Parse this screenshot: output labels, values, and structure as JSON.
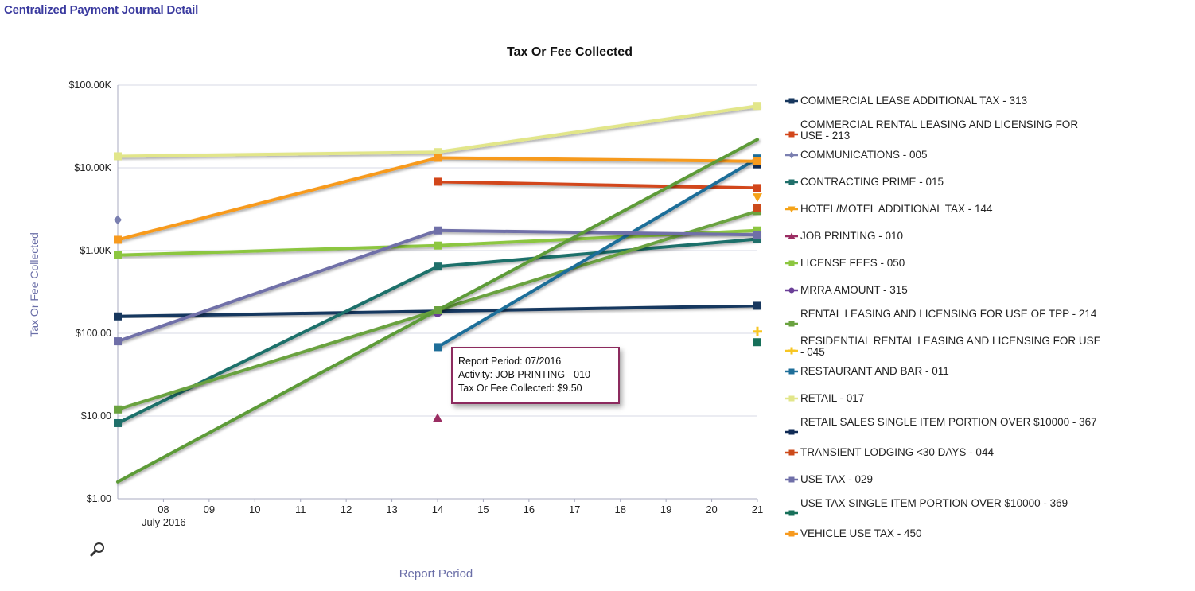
{
  "page": {
    "title": "Centralized Payment Journal Detail"
  },
  "tooltip": {
    "line1": "Report Period: 07/2016",
    "line2": "Activity: JOB PRINTING - 010",
    "line3": "Tax Or Fee Collected: $9.50"
  },
  "chart_data": {
    "type": "line",
    "title": "Tax Or Fee Collected",
    "xlabel": "Report Period",
    "ylabel": "Tax Or Fee Collected",
    "y_scale": "log",
    "ylim": [
      1,
      100000
    ],
    "y_ticks": [
      {
        "value": 1,
        "label": "$1.00"
      },
      {
        "value": 10,
        "label": "$10.00"
      },
      {
        "value": 100,
        "label": "$100.00"
      },
      {
        "value": 1000,
        "label": "$1.00K"
      },
      {
        "value": 10000,
        "label": "$10.00K"
      },
      {
        "value": 100000,
        "label": "$100.00K"
      }
    ],
    "x_range": [
      7,
      21
    ],
    "x_ticks": [
      {
        "value": 8,
        "label": "08"
      },
      {
        "value": 9,
        "label": "09"
      },
      {
        "value": 10,
        "label": "10"
      },
      {
        "value": 11,
        "label": "11"
      },
      {
        "value": 12,
        "label": "12"
      },
      {
        "value": 13,
        "label": "13"
      },
      {
        "value": 14,
        "label": "14"
      },
      {
        "value": 15,
        "label": "15"
      },
      {
        "value": 16,
        "label": "16"
      },
      {
        "value": 17,
        "label": "17"
      },
      {
        "value": 18,
        "label": "18"
      },
      {
        "value": 19,
        "label": "19"
      },
      {
        "value": 20,
        "label": "20"
      },
      {
        "value": 21,
        "label": "21"
      }
    ],
    "month_label": "July 2016",
    "grid": true,
    "legend_position": "right",
    "series": [
      {
        "name": "COMMERCIAL LEASE ADDITIONAL TAX - 313",
        "color": "#17375e",
        "marker": "square",
        "points": [
          [
            7,
            160
          ],
          [
            14,
            185
          ],
          [
            21,
            215
          ]
        ]
      },
      {
        "name": "COMMERCIAL RENTAL LEASING AND LICENSING FOR USE - 213",
        "color": "#d2461a",
        "marker": "square",
        "points": [
          [
            14,
            6800
          ],
          [
            21,
            5700
          ]
        ]
      },
      {
        "name": "COMMUNICATIONS - 005",
        "color": "#7a7fb0",
        "marker": "diamond",
        "points": [
          [
            7,
            2350
          ]
        ]
      },
      {
        "name": "CONTRACTING PRIME - 015",
        "color": "#1f6f6a",
        "marker": "square",
        "points": [
          [
            7,
            8.2
          ],
          [
            14,
            640
          ],
          [
            21,
            1380
          ]
        ]
      },
      {
        "name": "HOTEL/MOTEL ADDITIONAL TAX - 144",
        "color": "#f5a318",
        "marker": "triangle-down",
        "points": [
          [
            21,
            4400
          ]
        ]
      },
      {
        "name": "JOB PRINTING - 010",
        "color": "#9a2d62",
        "marker": "triangle",
        "points": [
          [
            14,
            9.5
          ]
        ]
      },
      {
        "name": "LICENSE FEES - 050",
        "color": "#8cc63f",
        "marker": "square",
        "points": [
          [
            7,
            880
          ],
          [
            14,
            1150
          ],
          [
            21,
            1750
          ]
        ]
      },
      {
        "name": "MRRA AMOUNT - 315",
        "color": "#6b3f98",
        "marker": "circle",
        "points": [
          [
            14,
            175
          ]
        ]
      },
      {
        "name": "RENTAL LEASING AND LICENSING FOR USE OF TPP - 214",
        "color": "#6aa23f",
        "marker": "square",
        "points": [
          [
            7,
            12
          ],
          [
            14,
            190
          ],
          [
            21,
            3000
          ]
        ]
      },
      {
        "name": "RESIDENTIAL RENTAL LEASING AND LICENSING FOR USE - 045",
        "color": "#f7c623",
        "marker": "cross",
        "points": [
          [
            21,
            105
          ]
        ]
      },
      {
        "name": "RESTAURANT AND BAR - 011",
        "color": "#1e6e99",
        "marker": "square",
        "points": [
          [
            14,
            68
          ],
          [
            21,
            13000
          ]
        ]
      },
      {
        "name": "RETAIL - 017",
        "color": "#e2e68a",
        "marker": "square",
        "points": [
          [
            7,
            13800
          ],
          [
            14,
            15500
          ],
          [
            21,
            56000
          ]
        ]
      },
      {
        "name": "RETAIL SALES SINGLE ITEM PORTION OVER $10000 - 367",
        "color": "#0f2a55",
        "marker": "square",
        "points": [
          [
            21,
            11000
          ]
        ]
      },
      {
        "name": "TRANSIENT LODGING <30 DAYS - 044",
        "color": "#cc4a1a",
        "marker": "square",
        "points": [
          [
            21,
            3300
          ]
        ]
      },
      {
        "name": "USE TAX - 029",
        "color": "#6f6fa8",
        "marker": "square",
        "points": [
          [
            7,
            80
          ],
          [
            14,
            1750
          ],
          [
            21,
            1550
          ]
        ]
      },
      {
        "name": "USE TAX SINGLE ITEM PORTION OVER $10000 - 369",
        "color": "#17705a",
        "marker": "square",
        "points": [
          [
            21,
            78
          ]
        ]
      },
      {
        "name": "VEHICLE USE TAX - 450",
        "color": "#f79a1e",
        "marker": "square",
        "points": [
          [
            7,
            1350
          ],
          [
            14,
            13200
          ],
          [
            21,
            12000
          ]
        ]
      },
      {
        "name": "",
        "color": "#5d9b38",
        "marker": "none",
        "points": [
          [
            7,
            1.6
          ],
          [
            14,
            190
          ],
          [
            21,
            22000
          ]
        ]
      }
    ]
  }
}
